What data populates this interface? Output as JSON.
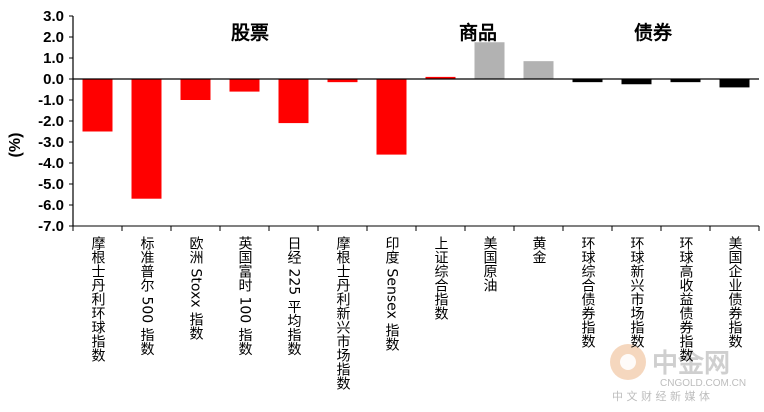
{
  "chart_data": {
    "type": "bar",
    "ylabel": "(%)",
    "ylim": [
      -7.0,
      3.0
    ],
    "y_ticks": [
      "3.0",
      "2.0",
      "1.0",
      "0.0",
      "-1.0",
      "-2.0",
      "-3.0",
      "-4.0",
      "-5.0",
      "-6.0",
      "-7.0"
    ],
    "groups": [
      {
        "name": "股票",
        "color": "#ff0000",
        "categories": [
          "摩根士丹利环球指数",
          "标准普尔 500 指数",
          "欧洲 Stoxx 指数",
          "英国富时 100 指数",
          "日经 225 平均指数",
          "摩根士丹利新兴市场指数",
          "印度 Sensex 指数"
        ],
        "values": [
          -2.5,
          -5.7,
          -1.0,
          -0.6,
          -2.1,
          -0.15,
          -3.6
        ]
      },
      {
        "name": "商品",
        "color": "#b2b2b2",
        "categories": [
          "上证综合指数",
          "美国原油",
          "黄金"
        ],
        "values": [
          0.1,
          1.75,
          0.85
        ]
      },
      {
        "name": "债券",
        "color": "#000000",
        "categories": [
          "环球综合债券指数",
          "环球新兴市场指数",
          "环球高收益债券指数",
          "美国企业债券指数"
        ],
        "values": [
          -0.15,
          -0.25,
          -0.15,
          -0.4
        ]
      }
    ],
    "shanghai_color": "#ff0000",
    "grid": false
  },
  "watermark": {
    "name": "中金网",
    "url": "CNGOLD.COM.CN",
    "tagline": "中 文 财 经 新 媒 体"
  }
}
